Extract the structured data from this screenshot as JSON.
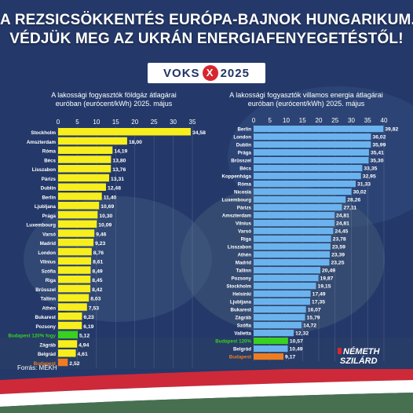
{
  "header": {
    "line1": "A REZSICSÖKKENTÉS EURÓPA-BAJNOK HUNGARIKUM.",
    "line2": "VÉDJÜK MEG AZ UKRÁN ENERGIAFENYEGETÉSTŐL!"
  },
  "logo": {
    "left": "VOKS",
    "mark": "X",
    "right": "2025"
  },
  "footer": {
    "source": "Forrás: MEKH",
    "author_line1": "NÉMETH",
    "author_line2": "SZILÁRD"
  },
  "colors": {
    "gas_bar": "#f7ee1c",
    "electricity_bar": "#6bb3ee",
    "budapest_120_bar": "#39d11f",
    "budapest_bar": "#ee7d22",
    "budapest_120_label": "#39d11f",
    "budapest_label": "#ee7d22",
    "flag_red": "#ce2939",
    "flag_white": "#ffffff",
    "flag_green": "#477050"
  },
  "chart_data": [
    {
      "type": "bar",
      "orientation": "horizontal",
      "title_line1": "A lakossági fogyasztók földgáz átlagárai",
      "title_line2": "euróban (eurócent/kWh) 2025. május",
      "xlim": [
        0,
        35
      ],
      "ticks": [
        "0",
        "5",
        "10",
        "15",
        "20",
        "25",
        "30",
        "35"
      ],
      "categories": [
        "Stockholm",
        "Amszterdam",
        "Róma",
        "Bécs",
        "Lisszabon",
        "Párizs",
        "Dublin",
        "Berlin",
        "Ljubljana",
        "Prága",
        "Luxembourg",
        "Varsó",
        "Madrid",
        "London",
        "Vilnius",
        "Szófia",
        "Riga",
        "Brüsszel",
        "Tallinn",
        "Athén",
        "Bukarest",
        "Pozsony",
        "Budapest 120% fogy",
        "Zágráb",
        "Belgrád",
        "Budapest"
      ],
      "values": [
        34.58,
        18.0,
        14.19,
        13.8,
        13.76,
        13.31,
        12.48,
        11.4,
        10.69,
        10.3,
        10.09,
        9.46,
        9.23,
        8.76,
        8.61,
        8.49,
        8.45,
        8.42,
        8.03,
        7.53,
        6.23,
        6.19,
        5.12,
        4.94,
        4.61,
        2.52
      ],
      "labels": [
        "34,58",
        "18,00",
        "14,19",
        "13,80",
        "13,76",
        "13,31",
        "12,48",
        "11,40",
        "10,69",
        "10,30",
        "10,09",
        "9,46",
        "9,23",
        "8,76",
        "8,61",
        "8,49",
        "8,45",
        "8,42",
        "8,03",
        "7,53",
        "6,23",
        "6,19",
        "5,12",
        "4,94",
        "4,61",
        "2,52"
      ],
      "highlight": {
        "Budapest 120% fogy": "budapest_120",
        "Budapest": "budapest"
      }
    },
    {
      "type": "bar",
      "orientation": "horizontal",
      "title_line1": "A lakossági fogyasztók villamos energia átlagárai",
      "title_line2": "euróban (eurócent/kWh) 2025. május",
      "xlim": [
        0,
        40
      ],
      "ticks": [
        "0",
        "5",
        "10",
        "15",
        "20",
        "25",
        "30",
        "35",
        "40"
      ],
      "categories": [
        "Berlin",
        "London",
        "Dublin",
        "Prága",
        "Brüsszel",
        "Bécs",
        "Koppenhága",
        "Róma",
        "Nicosia",
        "Luxembourg",
        "Párizs",
        "Amszterdam",
        "Vilnius",
        "Varsó",
        "Riga",
        "Lisszabon",
        "Athén",
        "Madrid",
        "Tallinn",
        "Pozsony",
        "Stockholm",
        "Helsinki",
        "Ljubljana",
        "Bukarest",
        "Zágráb",
        "Szófia",
        "Valletta",
        "Budapest 120%",
        "Belgrád",
        "Budapest"
      ],
      "values": [
        39.82,
        36.02,
        35.99,
        35.41,
        35.3,
        33.35,
        32.95,
        31.33,
        30.02,
        28.26,
        27.11,
        24.81,
        24.81,
        24.45,
        23.78,
        23.59,
        23.39,
        23.25,
        20.49,
        19.87,
        19.15,
        17.49,
        17.35,
        16.07,
        15.79,
        14.72,
        12.32,
        10.57,
        10.49,
        9.17
      ],
      "labels": [
        "39,82",
        "36,02",
        "35,99",
        "35,41",
        "35,30",
        "33,35",
        "32,95",
        "31,33",
        "30,02",
        "28,26",
        "27,11",
        "24,81",
        "24,81",
        "24,45",
        "23,78",
        "23,59",
        "23,39",
        "23,25",
        "20,49",
        "19,87",
        "19,15",
        "17,49",
        "17,35",
        "16,07",
        "15,79",
        "14,72",
        "12,32",
        "10,57",
        "10,49",
        "9,17"
      ],
      "highlight": {
        "Budapest 120%": "budapest_120",
        "Budapest": "budapest"
      }
    }
  ]
}
